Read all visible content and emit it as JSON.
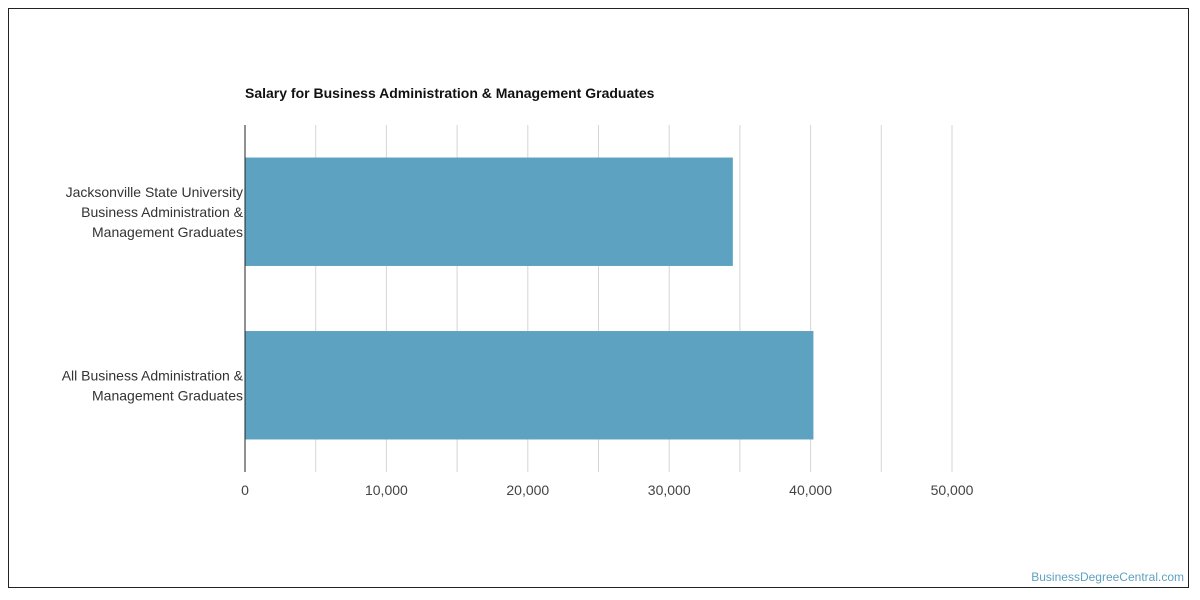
{
  "watermark": "BusinessDegreeCentral.com",
  "chart_data": {
    "type": "bar",
    "orientation": "horizontal",
    "title": "Salary for Business Administration & Management Graduates",
    "xlabel": "",
    "ylabel": "",
    "categories": [
      [
        "Jacksonville State University",
        "Business Administration &",
        "Management Graduates"
      ],
      [
        "All Business Administration &",
        "Management Graduates"
      ]
    ],
    "values": [
      34500,
      40200
    ],
    "xlim": [
      0,
      50000
    ],
    "ticks": [
      "0",
      "10,000",
      "20,000",
      "30,000",
      "40,000",
      "50,000"
    ],
    "tick_values": [
      0,
      10000,
      20000,
      30000,
      40000,
      50000
    ],
    "grid": true,
    "legend": "none",
    "colors": {
      "bar": "#5ea2c1",
      "grid": "#d6d6d6",
      "axis": "#222222"
    }
  }
}
